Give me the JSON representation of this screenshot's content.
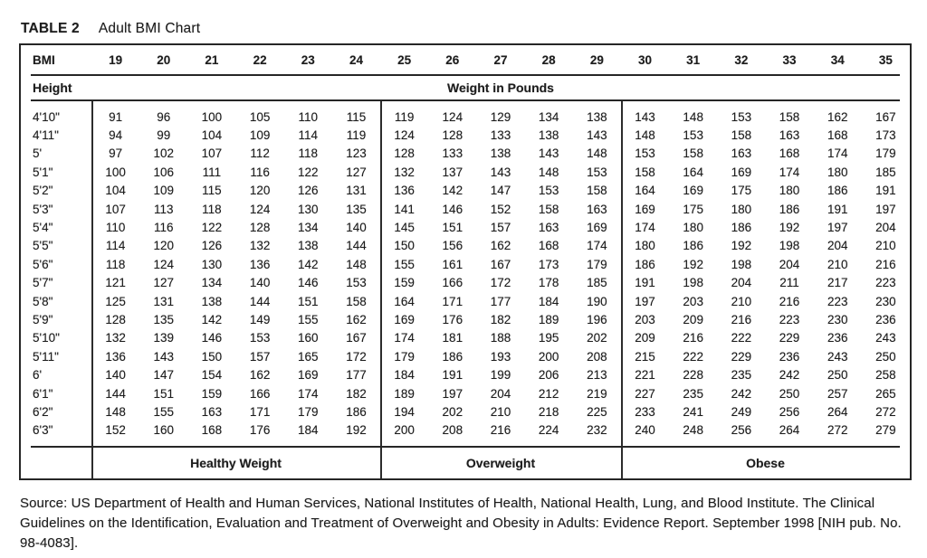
{
  "title": {
    "label": "TABLE 2",
    "text": "Adult BMI Chart"
  },
  "table": {
    "bmi_header_label": "BMI",
    "bmi_values": [
      "19",
      "20",
      "21",
      "22",
      "23",
      "24",
      "25",
      "26",
      "27",
      "28",
      "29",
      "30",
      "31",
      "32",
      "33",
      "34",
      "35"
    ],
    "height_label": "Height",
    "weight_label": "Weight in Pounds",
    "rows": [
      {
        "height": "4'10\"",
        "weights": [
          91,
          96,
          100,
          105,
          110,
          115,
          119,
          124,
          129,
          134,
          138,
          143,
          148,
          153,
          158,
          162,
          167
        ]
      },
      {
        "height": "4'11\"",
        "weights": [
          94,
          99,
          104,
          109,
          114,
          119,
          124,
          128,
          133,
          138,
          143,
          148,
          153,
          158,
          163,
          168,
          173
        ]
      },
      {
        "height": "5'",
        "weights": [
          97,
          102,
          107,
          112,
          118,
          123,
          128,
          133,
          138,
          143,
          148,
          153,
          158,
          163,
          168,
          174,
          179
        ]
      },
      {
        "height": "5'1\"",
        "weights": [
          100,
          106,
          111,
          116,
          122,
          127,
          132,
          137,
          143,
          148,
          153,
          158,
          164,
          169,
          174,
          180,
          185
        ]
      },
      {
        "height": "5'2\"",
        "weights": [
          104,
          109,
          115,
          120,
          126,
          131,
          136,
          142,
          147,
          153,
          158,
          164,
          169,
          175,
          180,
          186,
          191
        ]
      },
      {
        "height": "5'3\"",
        "weights": [
          107,
          113,
          118,
          124,
          130,
          135,
          141,
          146,
          152,
          158,
          163,
          169,
          175,
          180,
          186,
          191,
          197
        ]
      },
      {
        "height": "5'4\"",
        "weights": [
          110,
          116,
          122,
          128,
          134,
          140,
          145,
          151,
          157,
          163,
          169,
          174,
          180,
          186,
          192,
          197,
          204
        ]
      },
      {
        "height": "5'5\"",
        "weights": [
          114,
          120,
          126,
          132,
          138,
          144,
          150,
          156,
          162,
          168,
          174,
          180,
          186,
          192,
          198,
          204,
          210
        ]
      },
      {
        "height": "5'6\"",
        "weights": [
          118,
          124,
          130,
          136,
          142,
          148,
          155,
          161,
          167,
          173,
          179,
          186,
          192,
          198,
          204,
          210,
          216
        ]
      },
      {
        "height": "5'7\"",
        "weights": [
          121,
          127,
          134,
          140,
          146,
          153,
          159,
          166,
          172,
          178,
          185,
          191,
          198,
          204,
          211,
          217,
          223
        ]
      },
      {
        "height": "5'8\"",
        "weights": [
          125,
          131,
          138,
          144,
          151,
          158,
          164,
          171,
          177,
          184,
          190,
          197,
          203,
          210,
          216,
          223,
          230
        ]
      },
      {
        "height": "5'9\"",
        "weights": [
          128,
          135,
          142,
          149,
          155,
          162,
          169,
          176,
          182,
          189,
          196,
          203,
          209,
          216,
          223,
          230,
          236
        ]
      },
      {
        "height": "5'10\"",
        "weights": [
          132,
          139,
          146,
          153,
          160,
          167,
          174,
          181,
          188,
          195,
          202,
          209,
          216,
          222,
          229,
          236,
          243
        ]
      },
      {
        "height": "5'11\"",
        "weights": [
          136,
          143,
          150,
          157,
          165,
          172,
          179,
          186,
          193,
          200,
          208,
          215,
          222,
          229,
          236,
          243,
          250
        ]
      },
      {
        "height": "6'",
        "weights": [
          140,
          147,
          154,
          162,
          169,
          177,
          184,
          191,
          199,
          206,
          213,
          221,
          228,
          235,
          242,
          250,
          258
        ]
      },
      {
        "height": "6'1\"",
        "weights": [
          144,
          151,
          159,
          166,
          174,
          182,
          189,
          197,
          204,
          212,
          219,
          227,
          235,
          242,
          250,
          257,
          265
        ]
      },
      {
        "height": "6'2\"",
        "weights": [
          148,
          155,
          163,
          171,
          179,
          186,
          194,
          202,
          210,
          218,
          225,
          233,
          241,
          249,
          256,
          264,
          272
        ]
      },
      {
        "height": "6'3\"",
        "weights": [
          152,
          160,
          168,
          176,
          184,
          192,
          200,
          208,
          216,
          224,
          232,
          240,
          248,
          256,
          264,
          272,
          279
        ]
      }
    ],
    "categories": [
      {
        "label": "Healthy Weight",
        "span": 6
      },
      {
        "label": "Overweight",
        "span": 5
      },
      {
        "label": "Obese",
        "span": 6
      }
    ]
  },
  "source": {
    "text": "Source: US Department of Health and Human Services, National Institutes of Health, National Health, Lung, and Blood Institute. The Clinical Guidelines on the Identification, Evaluation and Treatment of Overweight and Obesity in Adults: Evidence Report. September 1998 [NIH pub. No. 98-4083]."
  },
  "colors": {
    "text": "#1d1d1d",
    "border": "#262626",
    "background": "#ffffff"
  }
}
